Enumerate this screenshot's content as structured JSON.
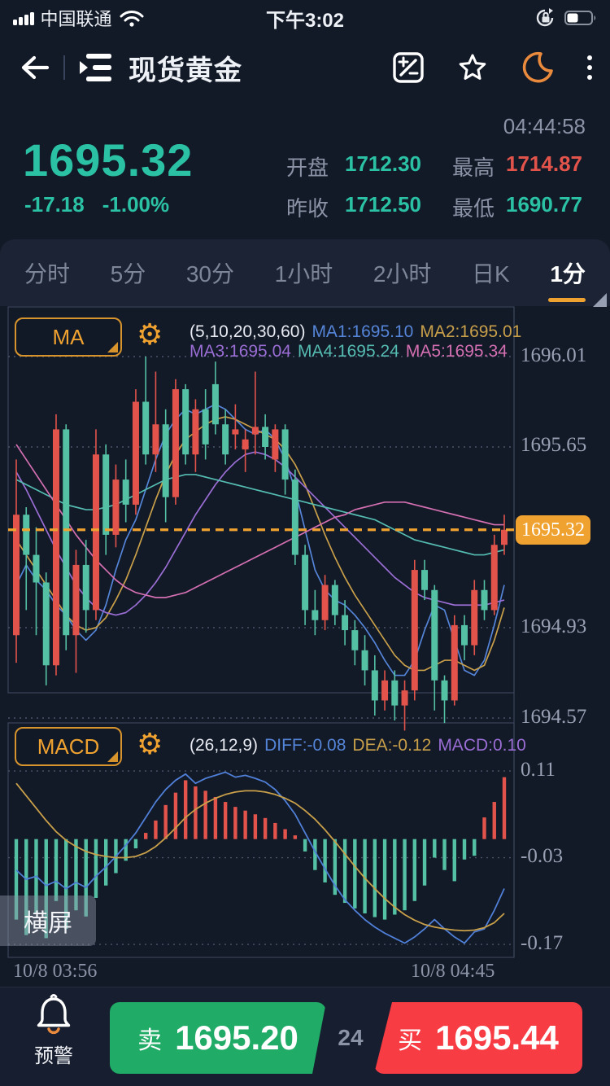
{
  "status_bar": {
    "carrier": "中国联通",
    "time": "下午3:02"
  },
  "header": {
    "title": "现货黄金"
  },
  "quote": {
    "countdown": "04:44:58",
    "last": "1695.32",
    "change": "-17.18",
    "change_pct": "-1.00%",
    "open_label": "开盘",
    "open": "1712.30",
    "high_label": "最高",
    "high": "1714.87",
    "prev_close_label": "昨收",
    "prev_close": "1712.50",
    "low_label": "最低",
    "low": "1690.77"
  },
  "tabs": {
    "items": [
      "分时",
      "5分",
      "30分",
      "1小时",
      "2小时",
      "日K",
      "1分"
    ],
    "active_index": 6
  },
  "ma_panel": {
    "button": "MA",
    "params": "(5,10,20,30,60)",
    "ma1": "MA1:1695.10",
    "ma2": "MA2:1695.01",
    "ma3": "MA3:1695.04",
    "ma4": "MA4:1695.24",
    "ma5": "MA5:1695.34"
  },
  "macd_panel": {
    "button": "MACD",
    "params": "(26,12,9)",
    "diff": "DIFF:-0.08",
    "dea": "DEA:-0.12",
    "macd": "MACD:0.10"
  },
  "landscape_button": "横屏",
  "bottom_bar": {
    "alert_label": "预警",
    "sell_label": "卖",
    "sell_price": "1695.20",
    "spread": "24",
    "buy_label": "买",
    "buy_price": "1695.44"
  },
  "colors": {
    "up": "#e2544b",
    "down": "#54c0a4",
    "accent": "#efa22f",
    "teal_text": "#2bc1a4",
    "red_text": "#e2544b",
    "gray": "#8b93a6",
    "ma1": "#5585d8",
    "ma2": "#c9a04a",
    "ma3": "#9a6ed4",
    "ma4": "#55bcb2",
    "ma5": "#d470b2",
    "diff": "#4f7fd6",
    "dea": "#c9a04a",
    "macd_text": "#9a6ed4",
    "panel_border": "#3a4459",
    "grid": "#4a5568",
    "sell": "#20ab66",
    "buy": "#f73c44",
    "badge": "#efa22f"
  },
  "chart_data": [
    {
      "type": "candlestick",
      "title": "现货黄金 1分 K线",
      "y_gridlines": [
        1696.01,
        1695.65,
        1694.93,
        1694.57
      ],
      "y_axis_labels": [
        "1696.01",
        "1695.65",
        "1694.93",
        "1694.57"
      ],
      "last_price": 1695.32,
      "last_price_label": "1695.32",
      "x_axis_labels": [
        "10/8 03:56",
        "10/8 04:45"
      ],
      "candles": [
        [
          1694.9,
          1695.6,
          1694.79,
          1695.38
        ],
        [
          1695.38,
          1695.41,
          1695.0,
          1695.22
        ],
        [
          1695.22,
          1695.33,
          1694.9,
          1695.11
        ],
        [
          1695.11,
          1695.15,
          1694.7,
          1694.78
        ],
        [
          1694.78,
          1695.78,
          1694.74,
          1695.72
        ],
        [
          1695.72,
          1695.74,
          1694.84,
          1694.9
        ],
        [
          1694.9,
          1695.24,
          1694.75,
          1695.18
        ],
        [
          1695.18,
          1695.28,
          1694.91,
          1695.0
        ],
        [
          1695.0,
          1695.72,
          1694.96,
          1695.62
        ],
        [
          1695.62,
          1695.66,
          1695.22,
          1695.3
        ],
        [
          1695.3,
          1695.58,
          1695.25,
          1695.52
        ],
        [
          1695.52,
          1695.6,
          1695.35,
          1695.42
        ],
        [
          1695.42,
          1695.88,
          1695.38,
          1695.83
        ],
        [
          1695.83,
          1696.01,
          1695.58,
          1695.62
        ],
        [
          1695.62,
          1695.95,
          1695.55,
          1695.74
        ],
        [
          1695.74,
          1695.8,
          1695.35,
          1695.45
        ],
        [
          1695.45,
          1695.92,
          1695.42,
          1695.88
        ],
        [
          1695.88,
          1695.9,
          1695.58,
          1695.62
        ],
        [
          1695.62,
          1695.84,
          1695.55,
          1695.8
        ],
        [
          1695.8,
          1695.88,
          1695.6,
          1695.66
        ],
        [
          1695.9,
          1695.99,
          1695.7,
          1695.74
        ],
        [
          1695.74,
          1695.8,
          1695.58,
          1695.62
        ],
        [
          1695.7,
          1695.82,
          1695.64,
          1695.72
        ],
        [
          1695.64,
          1695.72,
          1695.55,
          1695.68
        ],
        [
          1695.7,
          1695.95,
          1695.62,
          1695.73
        ],
        [
          1695.73,
          1695.78,
          1695.6,
          1695.65
        ],
        [
          1695.6,
          1695.74,
          1695.55,
          1695.72
        ],
        [
          1695.72,
          1695.74,
          1695.46,
          1695.52
        ],
        [
          1695.52,
          1695.56,
          1695.18,
          1695.22
        ],
        [
          1695.22,
          1695.26,
          1694.94,
          1695.0
        ],
        [
          1695.0,
          1695.08,
          1694.9,
          1694.96
        ],
        [
          1694.96,
          1695.14,
          1694.92,
          1695.1
        ],
        [
          1695.1,
          1695.12,
          1694.94,
          1694.98
        ],
        [
          1694.98,
          1695.04,
          1694.86,
          1694.92
        ],
        [
          1694.92,
          1694.96,
          1694.78,
          1694.84
        ],
        [
          1694.84,
          1694.9,
          1694.7,
          1694.76
        ],
        [
          1694.76,
          1694.82,
          1694.58,
          1694.64
        ],
        [
          1694.64,
          1694.76,
          1694.6,
          1694.72
        ],
        [
          1694.72,
          1694.76,
          1694.56,
          1694.62
        ],
        [
          1694.62,
          1694.72,
          1694.52,
          1694.68
        ],
        [
          1694.68,
          1695.2,
          1694.64,
          1695.16
        ],
        [
          1695.16,
          1695.2,
          1695.04,
          1695.08
        ],
        [
          1695.08,
          1695.1,
          1694.6,
          1694.72
        ],
        [
          1694.72,
          1694.74,
          1694.55,
          1694.64
        ],
        [
          1694.64,
          1694.98,
          1694.62,
          1694.94
        ],
        [
          1694.94,
          1694.98,
          1694.8,
          1694.86
        ],
        [
          1694.86,
          1695.12,
          1694.82,
          1695.08
        ],
        [
          1695.08,
          1695.12,
          1694.96,
          1695.0
        ],
        [
          1695.0,
          1695.3,
          1694.98,
          1695.26
        ],
        [
          1695.26,
          1695.38,
          1695.22,
          1695.32
        ]
      ],
      "ma_series": [
        {
          "name": "MA1",
          "period": 5,
          "color": "ma1",
          "values": [
            1695.1,
            1695.18,
            1695.12,
            1695.08,
            1695.02,
            1694.98,
            1694.92,
            1694.88,
            1694.92,
            1695.02,
            1695.16,
            1695.28,
            1695.36,
            1695.48,
            1695.6,
            1695.7,
            1695.76,
            1695.8,
            1695.78,
            1695.8,
            1695.82,
            1695.8,
            1695.76,
            1695.72,
            1695.7,
            1695.72,
            1695.68,
            1695.6,
            1695.48,
            1695.32,
            1695.16,
            1695.08,
            1695.04,
            1695.02,
            1694.98,
            1694.93,
            1694.87,
            1694.8,
            1694.74,
            1694.74,
            1694.8,
            1694.92,
            1695.02,
            1695.0,
            1694.88,
            1694.76,
            1694.74,
            1694.8,
            1694.94,
            1695.1
          ]
        },
        {
          "name": "MA2",
          "period": 10,
          "color": "ma2",
          "values": [
            1695.28,
            1695.22,
            1695.16,
            1695.1,
            1695.04,
            1694.98,
            1694.94,
            1694.92,
            1694.93,
            1694.97,
            1695.04,
            1695.12,
            1695.22,
            1695.33,
            1695.44,
            1695.54,
            1695.62,
            1695.68,
            1695.71,
            1695.74,
            1695.76,
            1695.77,
            1695.76,
            1695.74,
            1695.72,
            1695.7,
            1695.68,
            1695.64,
            1695.58,
            1695.5,
            1695.4,
            1695.3,
            1695.21,
            1695.13,
            1695.06,
            1695.0,
            1694.94,
            1694.88,
            1694.82,
            1694.78,
            1694.76,
            1694.76,
            1694.78,
            1694.8,
            1694.8,
            1694.78,
            1694.76,
            1694.78,
            1694.88,
            1695.01
          ]
        },
        {
          "name": "MA3",
          "period": 20,
          "color": "ma3",
          "values": [
            1695.55,
            1695.48,
            1695.4,
            1695.32,
            1695.24,
            1695.17,
            1695.1,
            1695.05,
            1695.01,
            1694.99,
            1694.98,
            1694.99,
            1695.02,
            1695.06,
            1695.11,
            1695.17,
            1695.24,
            1695.31,
            1695.38,
            1695.44,
            1695.5,
            1695.55,
            1695.59,
            1695.62,
            1695.63,
            1695.62,
            1695.6,
            1695.57,
            1695.53,
            1695.49,
            1695.45,
            1695.41,
            1695.37,
            1695.33,
            1695.29,
            1695.25,
            1695.21,
            1695.17,
            1695.13,
            1695.1,
            1695.07,
            1695.05,
            1695.04,
            1695.03,
            1695.02,
            1695.02,
            1695.02,
            1695.02,
            1695.03,
            1695.04
          ]
        },
        {
          "name": "MA4",
          "period": 30,
          "color": "ma4",
          "values": [
            1695.52,
            1695.5,
            1695.48,
            1695.46,
            1695.44,
            1695.42,
            1695.41,
            1695.4,
            1695.4,
            1695.41,
            1695.42,
            1695.44,
            1695.46,
            1695.48,
            1695.5,
            1695.52,
            1695.53,
            1695.54,
            1695.54,
            1695.53,
            1695.52,
            1695.51,
            1695.5,
            1695.49,
            1695.48,
            1695.47,
            1695.46,
            1695.45,
            1695.44,
            1695.43,
            1695.42,
            1695.41,
            1695.4,
            1695.39,
            1695.38,
            1695.37,
            1695.36,
            1695.34,
            1695.32,
            1695.3,
            1695.28,
            1695.27,
            1695.26,
            1695.25,
            1695.24,
            1695.23,
            1695.22,
            1695.22,
            1695.23,
            1695.24
          ]
        },
        {
          "name": "MA5",
          "period": 60,
          "color": "ma5",
          "values": [
            1695.66,
            1695.6,
            1695.54,
            1695.48,
            1695.42,
            1695.36,
            1695.3,
            1695.25,
            1695.2,
            1695.16,
            1695.12,
            1695.09,
            1695.07,
            1695.06,
            1695.05,
            1695.05,
            1695.06,
            1695.07,
            1695.09,
            1695.11,
            1695.13,
            1695.15,
            1695.17,
            1695.19,
            1695.21,
            1695.23,
            1695.25,
            1695.27,
            1695.29,
            1695.31,
            1695.33,
            1695.35,
            1695.37,
            1695.38,
            1695.4,
            1695.41,
            1695.42,
            1695.43,
            1695.43,
            1695.43,
            1695.42,
            1695.41,
            1695.4,
            1695.39,
            1695.38,
            1695.37,
            1695.36,
            1695.35,
            1695.34,
            1695.34
          ]
        }
      ]
    },
    {
      "type": "bar",
      "name": "MACD",
      "y_gridlines": [
        0.11,
        -0.03,
        -0.17
      ],
      "y_axis_labels": [
        "0.11",
        "-0.03",
        "-0.17"
      ],
      "histogram": [
        -0.13,
        -0.155,
        -0.12,
        -0.16,
        -0.1,
        -0.145,
        -0.115,
        -0.125,
        -0.095,
        -0.075,
        -0.055,
        -0.035,
        -0.015,
        0.01,
        0.03,
        0.055,
        0.075,
        0.095,
        0.085,
        0.078,
        0.068,
        0.06,
        0.052,
        0.046,
        0.04,
        0.034,
        0.026,
        0.016,
        0.006,
        -0.02,
        -0.05,
        -0.07,
        -0.09,
        -0.103,
        -0.112,
        -0.12,
        -0.126,
        -0.13,
        -0.122,
        -0.115,
        -0.1,
        -0.075,
        -0.03,
        -0.05,
        -0.068,
        -0.033,
        -0.027,
        0.035,
        0.06,
        0.1
      ],
      "diff": [
        -0.05,
        -0.065,
        -0.06,
        -0.075,
        -0.068,
        -0.08,
        -0.07,
        -0.078,
        -0.06,
        -0.045,
        -0.028,
        -0.01,
        0.01,
        0.035,
        0.06,
        0.08,
        0.095,
        0.105,
        0.09,
        0.098,
        0.103,
        0.108,
        0.1,
        0.103,
        0.098,
        0.092,
        0.08,
        0.062,
        0.04,
        0.01,
        -0.02,
        -0.048,
        -0.075,
        -0.098,
        -0.115,
        -0.13,
        -0.142,
        -0.152,
        -0.16,
        -0.168,
        -0.158,
        -0.145,
        -0.13,
        -0.145,
        -0.158,
        -0.168,
        -0.15,
        -0.145,
        -0.115,
        -0.08
      ],
      "dea": [
        0.09,
        0.07,
        0.05,
        0.03,
        0.012,
        -0.002,
        -0.012,
        -0.02,
        -0.025,
        -0.028,
        -0.03,
        -0.03,
        -0.028,
        -0.022,
        -0.012,
        0.002,
        0.018,
        0.035,
        0.048,
        0.058,
        0.066,
        0.072,
        0.076,
        0.078,
        0.078,
        0.076,
        0.072,
        0.066,
        0.058,
        0.046,
        0.032,
        0.015,
        -0.004,
        -0.024,
        -0.044,
        -0.063,
        -0.08,
        -0.096,
        -0.11,
        -0.122,
        -0.131,
        -0.138,
        -0.142,
        -0.145,
        -0.147,
        -0.148,
        -0.147,
        -0.143,
        -0.135,
        -0.12
      ]
    }
  ]
}
